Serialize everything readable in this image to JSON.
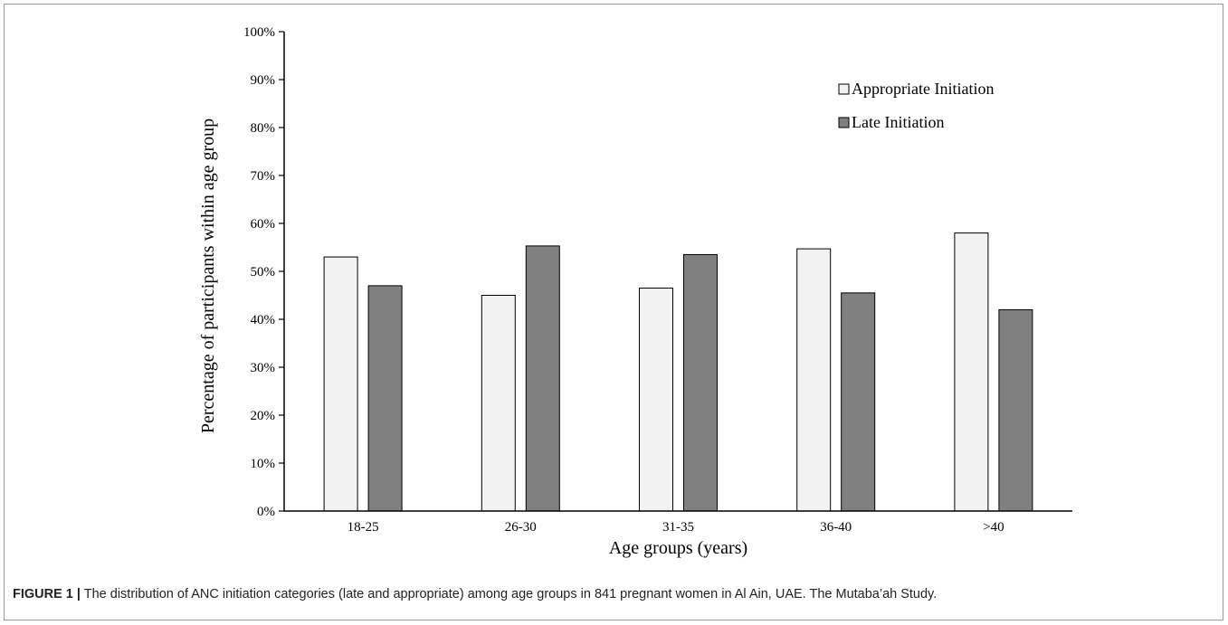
{
  "caption": {
    "label": "FIGURE 1 |",
    "text": " The distribution of ANC initiation categories (late and appropriate) among age groups in 841 pregnant women in Al Ain, UAE. The Mutaba’ah Study."
  },
  "chart_data": {
    "type": "bar",
    "title": "",
    "xlabel": "Age groups (years)",
    "ylabel": "Percentage of participants within age group",
    "categories": [
      "18-25",
      "26-30",
      "31-35",
      "36-40",
      ">40"
    ],
    "series": [
      {
        "name": "Appropriate Initiation",
        "values": [
          53,
          45,
          46.5,
          54.7,
          58
        ],
        "color": "#f2f2f2"
      },
      {
        "name": "Late Initiation",
        "values": [
          47,
          55.3,
          53.5,
          45.5,
          42
        ],
        "color": "#808080"
      }
    ],
    "ylim": [
      0,
      100
    ],
    "yticks": [
      "0%",
      "10%",
      "20%",
      "30%",
      "40%",
      "50%",
      "60%",
      "70%",
      "80%",
      "90%",
      "100%"
    ],
    "grid": false,
    "legend_position": "top-right"
  }
}
